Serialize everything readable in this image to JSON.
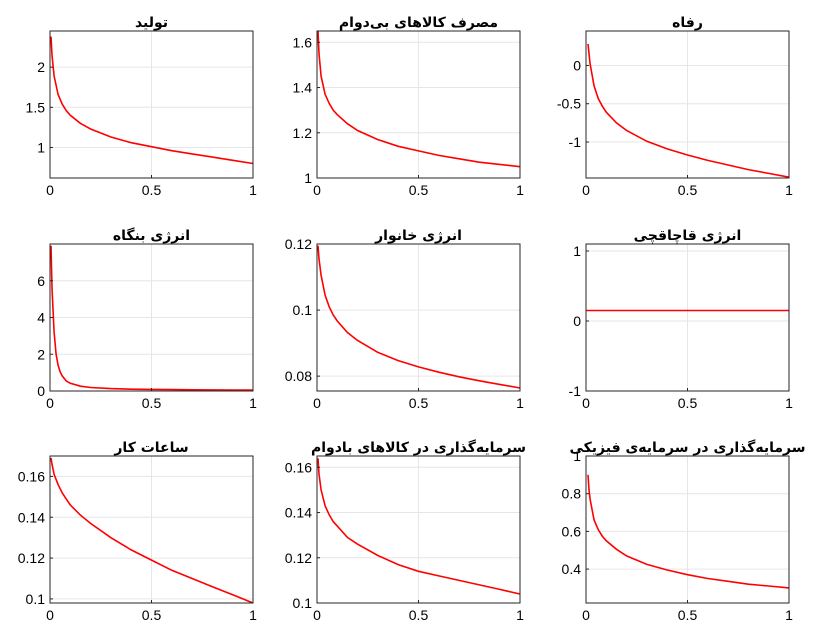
{
  "figure": {
    "top_caption": "",
    "line_color": "#ff0000"
  },
  "chart_data": [
    {
      "type": "line",
      "title": "تولید",
      "xlim": [
        0,
        1
      ],
      "ylim": [
        0.62,
        2.45
      ],
      "xticks": [
        0,
        0.5,
        1
      ],
      "yticks": [
        1,
        1.5,
        2
      ],
      "ytick_labels": [
        "1",
        "1.5",
        "2"
      ],
      "grid": true,
      "series": [
        {
          "x": [
            0.005,
            0.01,
            0.02,
            0.04,
            0.06,
            0.08,
            0.1,
            0.15,
            0.2,
            0.3,
            0.4,
            0.5,
            0.6,
            0.7,
            0.8,
            0.9,
            1.0
          ],
          "y": [
            2.38,
            2.15,
            1.89,
            1.66,
            1.54,
            1.46,
            1.4,
            1.3,
            1.23,
            1.13,
            1.06,
            1.01,
            0.96,
            0.92,
            0.88,
            0.84,
            0.8
          ]
        }
      ]
    },
    {
      "type": "line",
      "title": "مصرف کالاهای بی‌دوام",
      "xlim": [
        0,
        1
      ],
      "ylim": [
        1.0,
        1.65
      ],
      "xticks": [
        0,
        0.5,
        1
      ],
      "yticks": [
        1,
        1.2,
        1.4,
        1.6
      ],
      "ytick_labels": [
        "1",
        "1.2",
        "1.4",
        "1.6"
      ],
      "grid": true,
      "series": [
        {
          "x": [
            0.005,
            0.01,
            0.02,
            0.04,
            0.06,
            0.08,
            0.1,
            0.15,
            0.2,
            0.3,
            0.4,
            0.5,
            0.6,
            0.7,
            0.8,
            0.9,
            1.0
          ],
          "y": [
            1.65,
            1.55,
            1.45,
            1.37,
            1.33,
            1.3,
            1.28,
            1.24,
            1.21,
            1.17,
            1.14,
            1.12,
            1.1,
            1.085,
            1.07,
            1.06,
            1.05
          ]
        }
      ]
    },
    {
      "type": "line",
      "title": "رفاه",
      "xlim": [
        0,
        1
      ],
      "ylim": [
        -1.47,
        0.45
      ],
      "xticks": [
        0,
        0.5,
        1
      ],
      "yticks": [
        -1,
        -0.5,
        0
      ],
      "ytick_labels": [
        "-1",
        "-0.5",
        "0"
      ],
      "grid": true,
      "series": [
        {
          "x": [
            0.01,
            0.02,
            0.04,
            0.06,
            0.08,
            0.1,
            0.15,
            0.2,
            0.3,
            0.4,
            0.5,
            0.6,
            0.7,
            0.8,
            0.9,
            1.0
          ],
          "y": [
            0.28,
            0.02,
            -0.27,
            -0.43,
            -0.53,
            -0.61,
            -0.75,
            -0.85,
            -0.99,
            -1.09,
            -1.17,
            -1.24,
            -1.3,
            -1.36,
            -1.41,
            -1.46
          ]
        }
      ]
    },
    {
      "type": "line",
      "title": "انرژی بنگاه",
      "xlim": [
        0,
        1
      ],
      "ylim": [
        0,
        8
      ],
      "xticks": [
        0,
        0.5,
        1
      ],
      "yticks": [
        0,
        2,
        4,
        6
      ],
      "ytick_labels": [
        "0",
        "2",
        "4",
        "6"
      ],
      "grid": true,
      "series": [
        {
          "x": [
            0.005,
            0.01,
            0.02,
            0.03,
            0.04,
            0.05,
            0.06,
            0.08,
            0.1,
            0.15,
            0.2,
            0.3,
            0.4,
            0.5,
            0.6,
            0.7,
            0.8,
            0.9,
            1.0
          ],
          "y": [
            7.9,
            5.6,
            3.2,
            2.0,
            1.4,
            1.05,
            0.82,
            0.55,
            0.42,
            0.26,
            0.19,
            0.13,
            0.1,
            0.085,
            0.075,
            0.067,
            0.06,
            0.055,
            0.05
          ]
        }
      ]
    },
    {
      "type": "line",
      "title": "انرژی خانوار",
      "xlim": [
        0,
        1
      ],
      "ylim": [
        0.0755,
        0.12
      ],
      "xticks": [
        0,
        0.5,
        1
      ],
      "yticks": [
        0.08,
        0.1,
        0.12
      ],
      "ytick_labels": [
        "0.08",
        "0.1",
        "0.12"
      ],
      "grid": true,
      "series": [
        {
          "x": [
            0.005,
            0.01,
            0.02,
            0.04,
            0.06,
            0.08,
            0.1,
            0.15,
            0.2,
            0.3,
            0.4,
            0.5,
            0.6,
            0.7,
            0.8,
            0.9,
            1.0
          ],
          "y": [
            0.1195,
            0.1155,
            0.1105,
            0.1045,
            0.101,
            0.0985,
            0.0967,
            0.0932,
            0.0908,
            0.0872,
            0.0847,
            0.0828,
            0.0812,
            0.0798,
            0.0786,
            0.0775,
            0.0764
          ]
        }
      ]
    },
    {
      "type": "line",
      "title": "انرژی قاچاقچی",
      "xlim": [
        0,
        1
      ],
      "ylim": [
        -1,
        1.1
      ],
      "xticks": [
        0,
        0.5,
        1
      ],
      "yticks": [
        -1,
        0,
        1
      ],
      "ytick_labels": [
        "-1",
        "0",
        "1"
      ],
      "grid": true,
      "series": [
        {
          "x": [
            0,
            1
          ],
          "y": [
            0.15,
            0.15
          ]
        }
      ]
    },
    {
      "type": "line",
      "title": "ساعات کار",
      "xlim": [
        0,
        1
      ],
      "ylim": [
        0.098,
        0.17
      ],
      "xticks": [
        0,
        0.5,
        1
      ],
      "yticks": [
        0.1,
        0.12,
        0.14,
        0.16
      ],
      "ytick_labels": [
        "0.1",
        "0.12",
        "0.14",
        "0.16"
      ],
      "grid": true,
      "series": [
        {
          "x": [
            0.005,
            0.01,
            0.02,
            0.04,
            0.06,
            0.08,
            0.1,
            0.15,
            0.2,
            0.3,
            0.4,
            0.5,
            0.6,
            0.7,
            0.8,
            0.9,
            1.0
          ],
          "y": [
            0.169,
            0.166,
            0.161,
            0.156,
            0.152,
            0.149,
            0.146,
            0.141,
            0.137,
            0.13,
            0.124,
            0.119,
            0.114,
            0.11,
            0.106,
            0.102,
            0.098
          ]
        }
      ]
    },
    {
      "type": "line",
      "title": "سرمایه‌گذاری در کالاهای بادوام",
      "xlim": [
        0,
        1
      ],
      "ylim": [
        0.1,
        0.165
      ],
      "xticks": [
        0,
        0.5,
        1
      ],
      "yticks": [
        0.1,
        0.12,
        0.14,
        0.16
      ],
      "ytick_labels": [
        "0.1",
        "0.12",
        "0.14",
        "0.16"
      ],
      "grid": true,
      "series": [
        {
          "x": [
            0.005,
            0.01,
            0.02,
            0.04,
            0.06,
            0.08,
            0.1,
            0.15,
            0.2,
            0.3,
            0.4,
            0.5,
            0.6,
            0.7,
            0.8,
            0.9,
            1.0
          ],
          "y": [
            0.164,
            0.157,
            0.15,
            0.143,
            0.139,
            0.136,
            0.134,
            0.129,
            0.126,
            0.121,
            0.117,
            0.114,
            0.112,
            0.11,
            0.108,
            0.106,
            0.104
          ]
        }
      ]
    },
    {
      "type": "line",
      "title": "سرمایه‌گذاری در سرمایه‌ی فیزیکی",
      "xlim": [
        0,
        1
      ],
      "ylim": [
        0.22,
        1.0
      ],
      "xticks": [
        0,
        0.5,
        1
      ],
      "yticks": [
        0.4,
        0.6,
        0.8,
        1
      ],
      "ytick_labels": [
        "0.4",
        "0.6",
        "0.8",
        "1"
      ],
      "grid": true,
      "series": [
        {
          "x": [
            0.01,
            0.015,
            0.02,
            0.04,
            0.06,
            0.08,
            0.1,
            0.15,
            0.2,
            0.3,
            0.4,
            0.5,
            0.6,
            0.7,
            0.8,
            0.9,
            1.0
          ],
          "y": [
            0.9,
            0.82,
            0.77,
            0.66,
            0.61,
            0.575,
            0.55,
            0.505,
            0.47,
            0.425,
            0.395,
            0.37,
            0.35,
            0.335,
            0.32,
            0.31,
            0.3
          ]
        }
      ]
    }
  ]
}
